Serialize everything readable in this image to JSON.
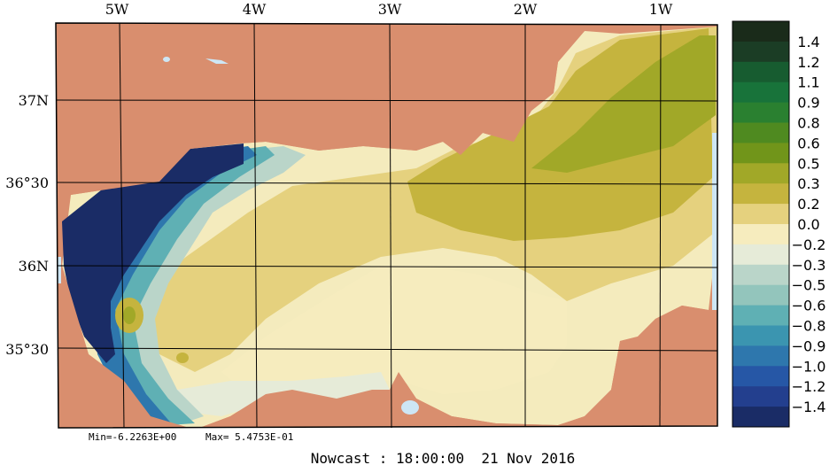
{
  "map": {
    "lon_labels": [
      "5W",
      "4W",
      "3W",
      "2W",
      "1W"
    ],
    "lat_labels": [
      "37N",
      "36°30",
      "36N",
      "35°30"
    ],
    "stats": {
      "min_text": "Min=-6.2263E+00",
      "max_text": "Max= 5.4753E-01"
    },
    "footer": "Nowcast : 18:00:00  21 Nov 2016",
    "colors": {
      "land": "#d98e6e",
      "water_fill": "#f4ebbd",
      "lakes": "#cde6f5"
    }
  },
  "colorbar": {
    "labels": [
      "1.4",
      "1.2",
      "1.1",
      "0.9",
      "0.8",
      "0.6",
      "0.5",
      "0.3",
      "0.2",
      "0.0",
      "−0.2",
      "−0.3",
      "−0.5",
      "−0.6",
      "−0.8",
      "−0.9",
      "−1.0",
      "−1.2",
      "−1.4"
    ],
    "colors": [
      "#1a2b1a",
      "#1b3d25",
      "#175c30",
      "#18733a",
      "#2a8030",
      "#4f8a20",
      "#71951a",
      "#a1a828",
      "#c5b43e",
      "#e5d17e",
      "#f6ecbe",
      "#e6ebd8",
      "#bad5c9",
      "#93c5bc",
      "#5fb0b4",
      "#3b95b0",
      "#2e77ad",
      "#2657a6",
      "#233f8e",
      "#1a2c66"
    ]
  }
}
